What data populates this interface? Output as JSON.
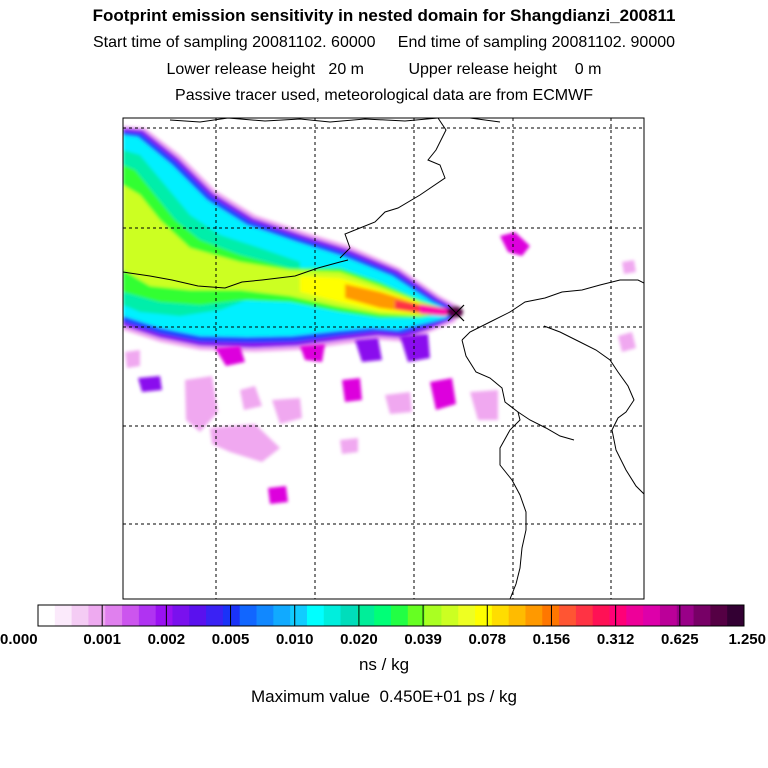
{
  "chart_data": {
    "type": "heatmap",
    "title": "Footprint emission sensitivity in nested domain for Shangdianzi_200811",
    "sampling": {
      "start_label": "Start time of sampling",
      "start_value": "20081102. 60000",
      "end_label": "End time of sampling",
      "end_value": "20081102. 90000"
    },
    "release": {
      "lower_label": "Lower release height",
      "lower_value": "20 m",
      "upper_label": "Upper release height",
      "upper_value": "0 m"
    },
    "tracer_note": "Passive tracer used, meteorological data are from ECMWF",
    "colorbar": {
      "unit": "ns / kg",
      "tick_labels": [
        "0.000",
        "0.001",
        "0.002",
        "0.005",
        "0.010",
        "0.020",
        "0.039",
        "0.078",
        "0.156",
        "0.312",
        "0.625",
        "1.250"
      ],
      "colors": [
        "#ffffff",
        "#fbeafb",
        "#f4ccf4",
        "#eeaaf0",
        "#e080ee",
        "#cc55ee",
        "#b033f2",
        "#9a11f2",
        "#7a11ee",
        "#5a11ee",
        "#3a22f4",
        "#1a33f8",
        "#1166ff",
        "#1188ff",
        "#11aaff",
        "#11ccff",
        "#00ffff",
        "#00eedd",
        "#00ddbb",
        "#00ee99",
        "#00ff77",
        "#22ff44",
        "#66ff22",
        "#aaff22",
        "#ccff22",
        "#eeff22",
        "#ffff00",
        "#ffdd00",
        "#ffbb00",
        "#ff9900",
        "#ff7700",
        "#ff5533",
        "#ff3344",
        "#ff1155",
        "#ff0077",
        "#ee0099",
        "#dd00aa",
        "#bb0099",
        "#990088",
        "#770066",
        "#550044",
        "#330033"
      ]
    },
    "max_value_text": "Maximum value  0.450E+01 ps / kg",
    "receptor": "Shangdianzi",
    "plume_colors": {
      "magenta": "#dd00dd",
      "light_magenta": "#f0a8f0",
      "violet": "#8a10ee",
      "blue": "#2244ff",
      "cyan": "#00f0ff",
      "teal": "#00eeaa",
      "green": "#33ff33",
      "yellow_green": "#ccff22",
      "yellow": "#ffff00",
      "orange": "#ff9900",
      "red": "#ff3344",
      "pink": "#ff11aa",
      "dark": "#550044"
    }
  }
}
